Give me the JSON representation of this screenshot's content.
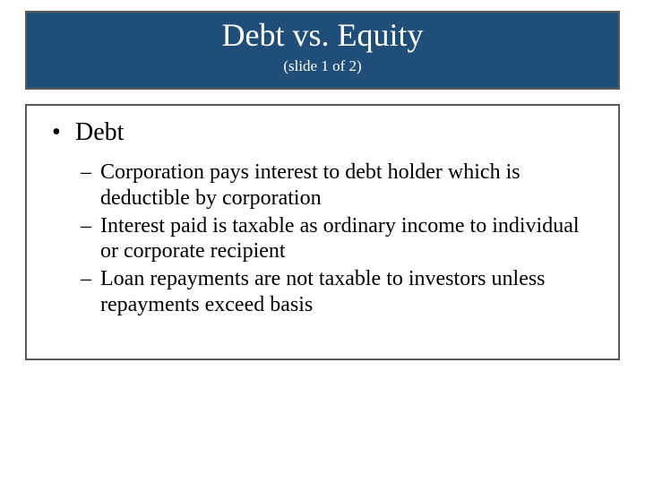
{
  "colors": {
    "title_bg": "#1f4e79",
    "title_text": "#ffffff",
    "border": "#5a5a5a",
    "body_text": "#000000",
    "slide_bg": "#ffffff"
  },
  "typography": {
    "title_fontsize": 36,
    "subtitle_fontsize": 17,
    "bullet_l1_fontsize": 28,
    "bullet_l2_fontsize": 24,
    "font_family": "Times New Roman"
  },
  "title": {
    "main": "Debt vs. Equity",
    "sub": "(slide 1 of 2)"
  },
  "body": {
    "l1": "Debt",
    "items": [
      "Corporation pays interest to debt holder which is deductible by corporation",
      "Interest paid is taxable as ordinary income to individual or corporate recipient",
      "Loan repayments are not taxable to investors unless repayments exceed basis"
    ]
  }
}
